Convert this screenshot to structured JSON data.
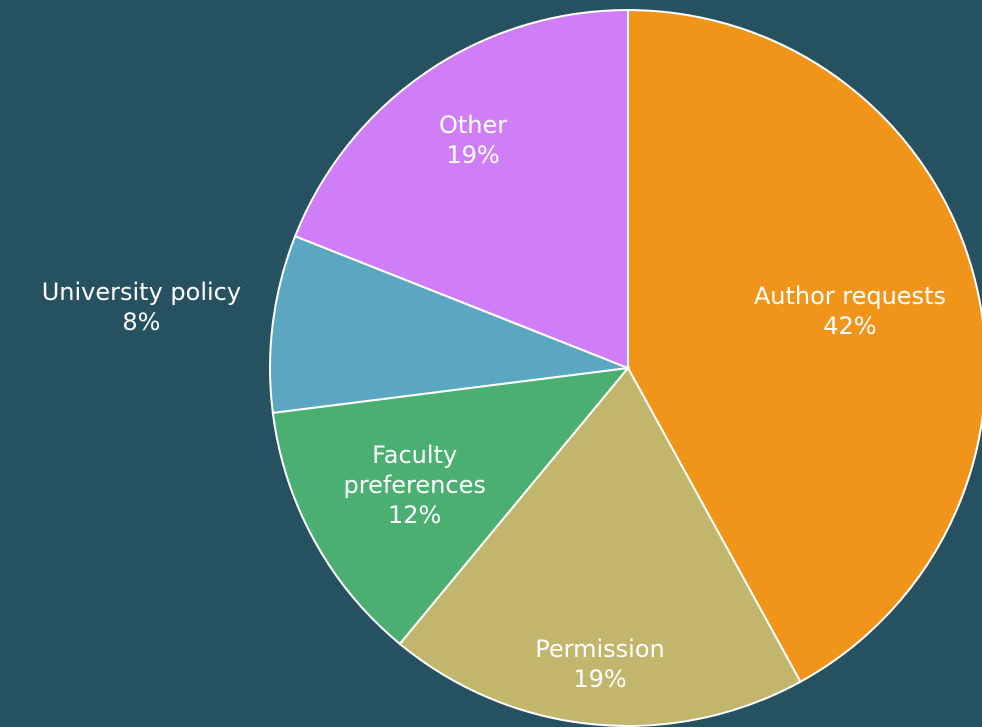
{
  "chart_data": {
    "type": "pie",
    "categories": [
      "Author requests",
      "Permission",
      "Faculty preferences",
      "University policy",
      "Other"
    ],
    "values": [
      42,
      19,
      12,
      8,
      19
    ],
    "value_labels": [
      "42%",
      "19%",
      "12%",
      "8%",
      "19%"
    ],
    "colors": [
      "#f0941a",
      "#c2b56c",
      "#4caf72",
      "#5ba7c2",
      "#cf7ef7"
    ]
  }
}
